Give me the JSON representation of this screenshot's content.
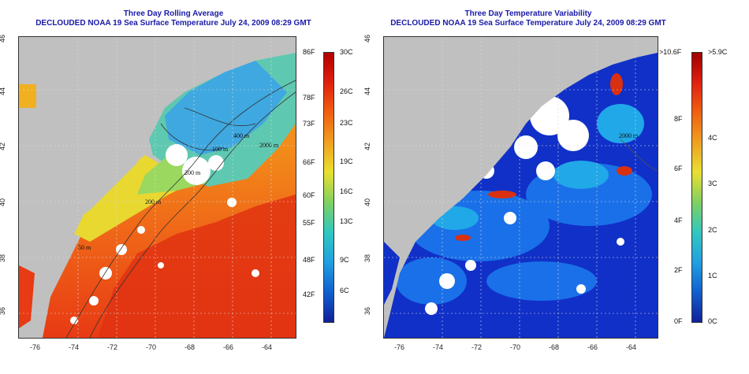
{
  "left_panel": {
    "title_line1": "Three Day Rolling Average",
    "title_line2": "DECLOUDED NOAA 19 Sea Surface Temperature July 24, 2009 08:29 GMT",
    "contour_labels": [
      "400 m",
      "100 m",
      "2000 m",
      "200 m",
      "200 m",
      "50 m"
    ],
    "colorbar": {
      "fahrenheit": [
        "86F",
        "78F",
        "73F",
        "66F",
        "60F",
        "55F",
        "48F",
        "42F"
      ],
      "celsius": [
        "30C",
        "26C",
        "23C",
        "19C",
        "16C",
        "13C",
        "9C",
        "6C"
      ]
    }
  },
  "right_panel": {
    "title_line1": "Three Day Temperature Variability",
    "title_line2": "DECLOUDED NOAA 19 Sea Surface Temperature July 24, 2009 08:29 GMT",
    "contour_labels": [
      "2000 m"
    ],
    "colorbar": {
      "fahrenheit": [
        ">10.6F",
        "8F",
        "6F",
        "4F",
        "2F",
        "0F"
      ],
      "celsius": [
        ">5.9C",
        "4C",
        "3C",
        "2C",
        "1C",
        "0C"
      ]
    }
  },
  "axes": {
    "lon_ticks": [
      "-76",
      "-74",
      "-72",
      "-70",
      "-68",
      "-66",
      "-64"
    ],
    "lat_ticks": [
      "46",
      "44",
      "42",
      "40",
      "38",
      "36"
    ]
  },
  "colors": {
    "land": "#c0c0c0",
    "title": "#1a1aa8",
    "cloud": "#ffffff"
  }
}
